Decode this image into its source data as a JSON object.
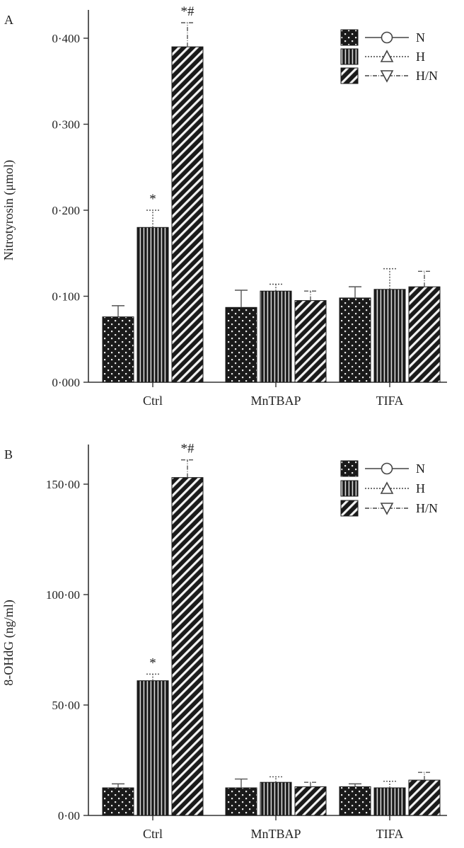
{
  "chart_data": [
    {
      "type": "bar",
      "panel": "A",
      "ylabel": "Nitrotyrosin (μmol)",
      "ylim": [
        0,
        0.4
      ],
      "yticks": [
        "0·000",
        "0·100",
        "0·200",
        "0·300",
        "0·400"
      ],
      "yticks_values": [
        0,
        0.1,
        0.2,
        0.3,
        0.4
      ],
      "categories": [
        "Ctrl",
        "MnTBAP",
        "TIFA"
      ],
      "series": [
        {
          "name": "N",
          "values": [
            0.076,
            0.087,
            0.098
          ],
          "errors": [
            0.013,
            0.02,
            0.013
          ]
        },
        {
          "name": "H",
          "values": [
            0.18,
            0.106,
            0.108
          ],
          "errors": [
            0.02,
            0.008,
            0.024
          ]
        },
        {
          "name": "H/N",
          "values": [
            0.39,
            0.095,
            0.111
          ],
          "errors": [
            0.028,
            0.011,
            0.018
          ]
        }
      ],
      "annotations": [
        {
          "category": "Ctrl",
          "series": "H",
          "text": "*"
        },
        {
          "category": "Ctrl",
          "series": "H/N",
          "text": "*#"
        }
      ],
      "legend": "top-right",
      "grid": false
    },
    {
      "type": "bar",
      "panel": "B",
      "ylabel": "8-OHdG (ng/ml)",
      "ylim": [
        0,
        150
      ],
      "yticks": [
        "0·00",
        "50·00",
        "100·00",
        "150·00"
      ],
      "yticks_values": [
        0,
        50,
        100,
        150
      ],
      "categories": [
        "Ctrl",
        "MnTBAP",
        "TIFA"
      ],
      "series": [
        {
          "name": "N",
          "values": [
            12.5,
            12.5,
            13.0
          ],
          "errors": [
            1.8,
            4.0,
            1.3
          ]
        },
        {
          "name": "H",
          "values": [
            61.0,
            15.0,
            12.5
          ],
          "errors": [
            3.0,
            2.5,
            3.0
          ]
        },
        {
          "name": "H/N",
          "values": [
            153.0,
            13.0,
            16.0
          ],
          "errors": [
            8.0,
            2.0,
            3.5
          ]
        }
      ],
      "annotations": [
        {
          "category": "Ctrl",
          "series": "H",
          "text": "*"
        },
        {
          "category": "Ctrl",
          "series": "H/N",
          "text": "*#"
        }
      ],
      "legend": "top-right",
      "grid": false
    }
  ],
  "colors": {
    "bar_fill": "#1a1a1a",
    "pattern": "#f2f2f2",
    "axis": "#333333"
  },
  "legend_styles": [
    "solid-circle",
    "dotted-triangle-up",
    "dashdot-triangle-down"
  ]
}
